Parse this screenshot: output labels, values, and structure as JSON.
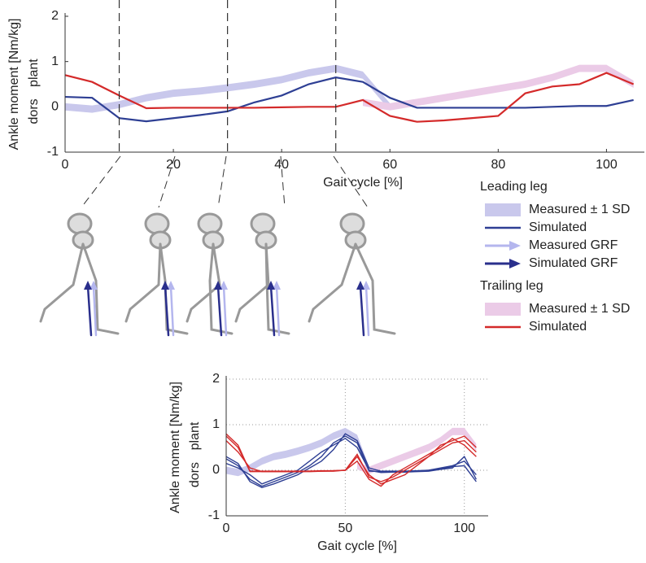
{
  "chart_data": [
    {
      "type": "line",
      "ylabel": "Ankle moment [Nm/kg]",
      "xlabel": "Gait cycle [%]",
      "y_annotations": [
        "plant",
        "dors"
      ],
      "xlim": [
        0,
        107
      ],
      "ylim": [
        -1,
        2
      ],
      "xticks": [
        0,
        20,
        40,
        60,
        80,
        100
      ],
      "yticks": [
        -1,
        0,
        1,
        2
      ],
      "grid": false,
      "phase_lines": [
        10,
        30,
        50
      ],
      "x": [
        0,
        5,
        10,
        15,
        20,
        25,
        30,
        35,
        40,
        45,
        50,
        55,
        60,
        65,
        70,
        75,
        80,
        85,
        90,
        95,
        100,
        105
      ],
      "series": [
        {
          "style": "band",
          "color": "#c9c8ec",
          "values": [
            0,
            -0.05,
            0.05,
            0.2,
            0.3,
            0.35,
            0.42,
            0.5,
            0.6,
            0.75,
            0.85,
            0.7,
            0.0,
            null,
            null,
            null,
            null,
            null,
            null,
            null,
            null,
            null
          ],
          "sd": [
            0.08,
            0.08,
            0.08,
            0.08,
            0.08,
            0.08,
            0.08,
            0.08,
            0.08,
            0.08,
            0.08,
            0.08,
            0.08,
            null,
            null,
            null,
            null,
            null,
            null,
            null,
            null,
            null
          ]
        },
        {
          "style": "band",
          "color": "#ebcbe7",
          "values": [
            null,
            null,
            null,
            null,
            null,
            null,
            null,
            null,
            null,
            null,
            null,
            0.1,
            0.0,
            0.1,
            0.2,
            0.3,
            0.4,
            0.5,
            0.65,
            0.85,
            0.85,
            0.5
          ],
          "sd": [
            null,
            null,
            null,
            null,
            null,
            null,
            null,
            null,
            null,
            null,
            null,
            0.08,
            0.08,
            0.08,
            0.08,
            0.08,
            0.08,
            0.08,
            0.08,
            0.08,
            0.08,
            0.08
          ]
        },
        {
          "style": "line",
          "color": "#2e3f94",
          "values": [
            0.22,
            0.2,
            -0.25,
            -0.32,
            -0.25,
            -0.18,
            -0.1,
            0.1,
            0.25,
            0.5,
            0.65,
            0.55,
            0.2,
            -0.02,
            -0.02,
            -0.02,
            -0.02,
            -0.02,
            0,
            0.02,
            0.02,
            0.15
          ]
        },
        {
          "style": "line",
          "color": "#d42a2a",
          "values": [
            0.7,
            0.55,
            0.25,
            -0.03,
            -0.02,
            -0.02,
            -0.02,
            -0.02,
            -0.01,
            0,
            0,
            0.15,
            -0.2,
            -0.33,
            -0.3,
            -0.25,
            -0.2,
            0.3,
            0.45,
            0.5,
            0.75,
            0.5
          ]
        }
      ]
    },
    {
      "type": "line",
      "ylabel": "Ankle moment [Nm/kg]",
      "xlabel": "Gait cycle [%]",
      "y_annotations": [
        "plant",
        "dors"
      ],
      "xlim": [
        0,
        110
      ],
      "ylim": [
        -1,
        2
      ],
      "xticks": [
        0,
        50,
        100
      ],
      "yticks": [
        -1,
        0,
        1,
        2
      ],
      "grid": true,
      "x": [
        0,
        5,
        10,
        15,
        20,
        25,
        30,
        35,
        40,
        45,
        50,
        55,
        60,
        65,
        70,
        75,
        80,
        85,
        90,
        95,
        100,
        105
      ],
      "series": [
        {
          "style": "band",
          "color": "#c9c8ec",
          "values": [
            0,
            -0.05,
            0.05,
            0.2,
            0.3,
            0.35,
            0.42,
            0.5,
            0.6,
            0.75,
            0.85,
            0.7,
            0.0,
            null,
            null,
            null,
            null,
            null,
            null,
            null,
            null,
            null
          ],
          "sd": [
            0.08,
            0.08,
            0.08,
            0.08,
            0.08,
            0.08,
            0.08,
            0.08,
            0.08,
            0.08,
            0.08,
            0.08,
            0.08,
            null,
            null,
            null,
            null,
            null,
            null,
            null,
            null,
            null
          ]
        },
        {
          "style": "band",
          "color": "#ebcbe7",
          "values": [
            null,
            null,
            null,
            null,
            null,
            null,
            null,
            null,
            null,
            null,
            null,
            0.1,
            0.0,
            0.1,
            0.2,
            0.3,
            0.4,
            0.5,
            0.65,
            0.85,
            0.85,
            0.5
          ],
          "sd": [
            null,
            null,
            null,
            null,
            null,
            null,
            null,
            null,
            null,
            null,
            null,
            0.08,
            0.08,
            0.08,
            0.08,
            0.08,
            0.08,
            0.08,
            0.08,
            0.08,
            0.08,
            0.08
          ]
        },
        {
          "style": "line",
          "color": "#2e3f94",
          "values": [
            0.25,
            0.1,
            -0.2,
            -0.35,
            -0.25,
            -0.15,
            -0.05,
            0.1,
            0.3,
            0.6,
            0.75,
            0.6,
            -0.02,
            -0.03,
            -0.03,
            -0.03,
            -0.02,
            0,
            0.05,
            0.1,
            0.2,
            -0.1
          ]
        },
        {
          "style": "line",
          "color": "#2e3f94",
          "values": [
            0.15,
            0.05,
            -0.1,
            -0.3,
            -0.2,
            -0.1,
            0,
            0.2,
            0.4,
            0.55,
            0.7,
            0.5,
            0,
            -0.05,
            -0.04,
            -0.04,
            -0.03,
            -0.02,
            0.02,
            0.05,
            0.3,
            -0.2
          ]
        },
        {
          "style": "line",
          "color": "#2e3f94",
          "values": [
            0.3,
            0.15,
            -0.25,
            -0.38,
            -0.3,
            -0.2,
            -0.1,
            0.05,
            0.2,
            0.45,
            0.8,
            0.65,
            0.05,
            -0.02,
            -0.02,
            -0.02,
            -0.01,
            0,
            0.03,
            0.08,
            0.1,
            -0.25
          ]
        },
        {
          "style": "line",
          "color": "#d42a2a",
          "values": [
            0.75,
            0.5,
            -0.02,
            -0.02,
            -0.02,
            -0.02,
            -0.02,
            -0.02,
            -0.01,
            -0.01,
            0,
            0.3,
            -0.1,
            -0.3,
            -0.2,
            -0.1,
            0.1,
            0.3,
            0.45,
            0.6,
            0.65,
            0.4
          ]
        },
        {
          "style": "line",
          "color": "#d42a2a",
          "values": [
            0.65,
            0.4,
            0.05,
            -0.03,
            -0.03,
            -0.03,
            -0.03,
            -0.02,
            -0.02,
            -0.01,
            0,
            0.2,
            -0.2,
            -0.35,
            -0.1,
            0.05,
            0.2,
            0.35,
            0.5,
            0.7,
            0.55,
            0.3
          ]
        },
        {
          "style": "line",
          "color": "#d42a2a",
          "values": [
            0.8,
            0.55,
            -0.03,
            -0.03,
            -0.03,
            -0.03,
            -0.03,
            -0.03,
            -0.02,
            -0.02,
            0,
            0.35,
            -0.15,
            -0.25,
            -0.15,
            0,
            0.15,
            0.3,
            0.55,
            0.65,
            0.75,
            0.5
          ]
        }
      ]
    }
  ],
  "legend": {
    "groups": [
      {
        "title": "Leading leg",
        "entries": [
          {
            "label": "Measured ± 1 SD",
            "kind": "band",
            "color": "#c9c8ec"
          },
          {
            "label": "Simulated",
            "kind": "line",
            "color": "#2e3f94"
          },
          {
            "label": "Measured GRF",
            "kind": "arrow",
            "color": "#b4b6ee"
          },
          {
            "label": "Simulated GRF",
            "kind": "arrow",
            "color": "#2a2f8c"
          }
        ]
      },
      {
        "title": "Trailing leg",
        "entries": [
          {
            "label": "Measured ± 1 SD",
            "kind": "band",
            "color": "#ebcbe7"
          },
          {
            "label": "Simulated",
            "kind": "line",
            "color": "#d42a2a"
          }
        ]
      }
    ]
  }
}
